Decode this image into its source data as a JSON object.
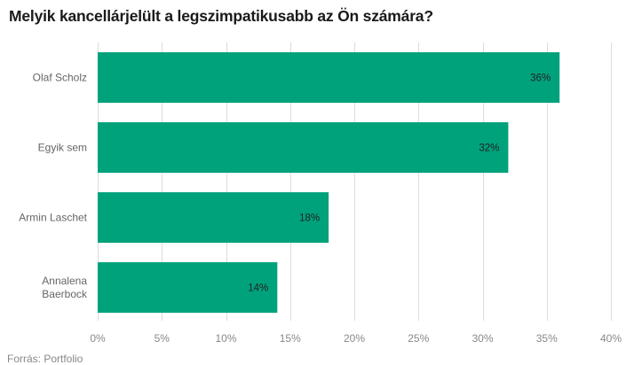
{
  "chart_data": {
    "type": "bar",
    "orientation": "horizontal",
    "title": "Melyik kancellárjelült a legszimpatikusabb az Ön számára?",
    "categories": [
      [
        "Olaf Scholz"
      ],
      [
        "Egyik sem"
      ],
      [
        "Armin Laschet"
      ],
      [
        "Annalena",
        "Baerbock"
      ]
    ],
    "values": [
      36,
      32,
      18,
      14
    ],
    "value_labels": [
      "36%",
      "32%",
      "18%",
      "14%"
    ],
    "xlim": [
      0,
      40
    ],
    "xticks": [
      0,
      5,
      10,
      15,
      20,
      25,
      30,
      35,
      40
    ],
    "xtick_labels": [
      "0%",
      "5%",
      "10%",
      "15%",
      "20%",
      "25%",
      "30%",
      "35%",
      "40%"
    ],
    "bar_color": "#00a27c",
    "grid": true,
    "source": "Forrás:  Portfolio"
  }
}
